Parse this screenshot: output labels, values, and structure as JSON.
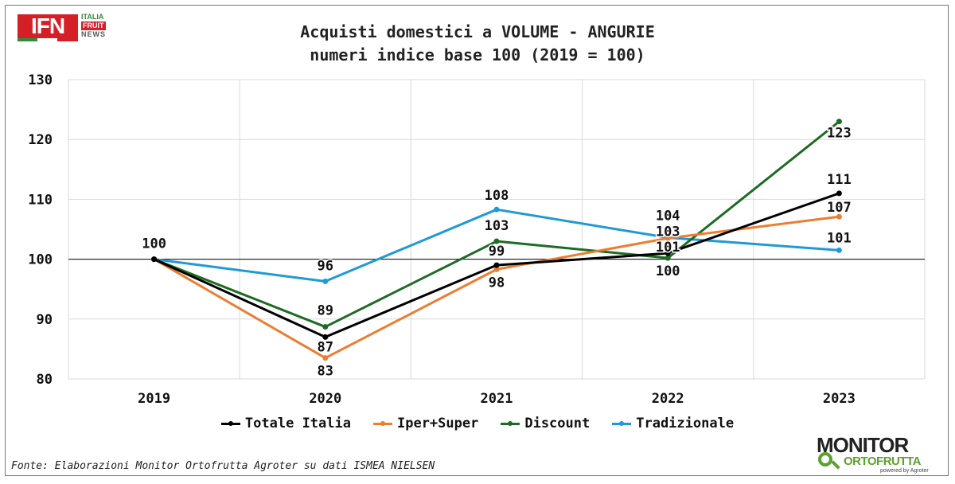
{
  "logo": {
    "ifn": "IFN",
    "words": [
      "ITALIA",
      "FRUIT",
      "NEWS"
    ]
  },
  "source": "Fonte: Elaborazioni Monitor Ortofrutta Agroter su dati ISMEA NIELSEN",
  "brand": {
    "top": "MONITOR",
    "bottom": "ORTOFRUTTA",
    "sub": "powered by Agroter"
  },
  "chart_data": {
    "type": "line",
    "title": [
      "Acquisti domestici a VOLUME - ANGURIE",
      "numeri indice base 100 (2019 = 100)"
    ],
    "categories": [
      "2019",
      "2020",
      "2021",
      "2022",
      "2023"
    ],
    "ylim": [
      80,
      130
    ],
    "yticks": [
      80,
      90,
      100,
      110,
      120,
      130
    ],
    "grid": true,
    "reference_line": 100,
    "legend_position": "bottom",
    "series": [
      {
        "name": "Totale Italia",
        "color": "#000000",
        "values": [
          100,
          87,
          99,
          101,
          111
        ],
        "labels": [
          "",
          "87",
          "99",
          "101",
          "111"
        ]
      },
      {
        "name": "Iper+Super",
        "color": "#ed7d31",
        "values": [
          100,
          83.5,
          98.3,
          103.5,
          107.1
        ],
        "labels": [
          "",
          "83",
          "98",
          "103",
          "107"
        ]
      },
      {
        "name": "Discount",
        "color": "#1e6b23",
        "values": [
          100,
          88.7,
          103,
          100.2,
          123
        ],
        "labels": [
          "",
          "89",
          "103",
          "100",
          "123"
        ]
      },
      {
        "name": "Tradizionale",
        "color": "#1f9ad6",
        "values": [
          100,
          96.3,
          108.3,
          103.6,
          101.5
        ],
        "labels": [
          "100",
          "96",
          "108",
          "104",
          "101"
        ]
      }
    ]
  }
}
